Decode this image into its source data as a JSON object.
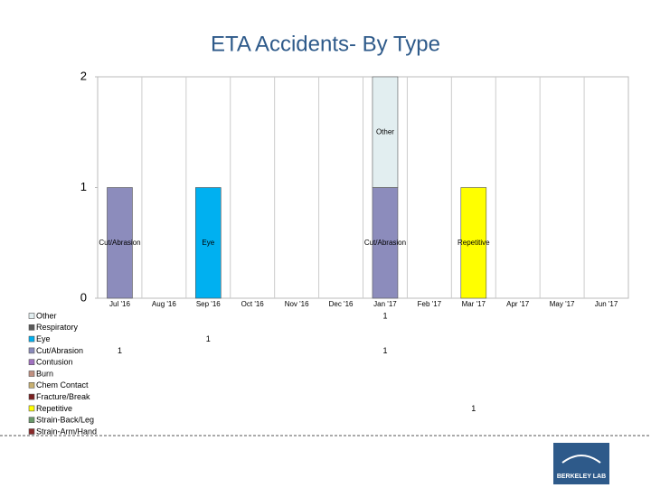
{
  "chart_data": {
    "type": "stacked-bar",
    "title": "ETA Accidents- By Type",
    "categories": [
      "Jul '16",
      "Aug '16",
      "Sep '16",
      "Oct '16",
      "Nov '16",
      "Dec '16",
      "Jan '17",
      "Feb '17",
      "Mar '17",
      "Apr '17",
      "May '17",
      "Jun '17"
    ],
    "series": [
      {
        "name": "Other",
        "color": "#e2eef0",
        "values": [
          null,
          null,
          null,
          null,
          null,
          null,
          1,
          null,
          null,
          null,
          null,
          null
        ]
      },
      {
        "name": "Respiratory",
        "color": "#5a5a5a",
        "values": [
          null,
          null,
          null,
          null,
          null,
          null,
          null,
          null,
          null,
          null,
          null,
          null
        ]
      },
      {
        "name": "Eye",
        "color": "#00b0f0",
        "values": [
          null,
          null,
          1,
          null,
          null,
          null,
          null,
          null,
          null,
          null,
          null,
          null
        ]
      },
      {
        "name": "Cut/Abrasion",
        "color": "#8c8cbc",
        "values": [
          1,
          null,
          null,
          null,
          null,
          null,
          1,
          null,
          null,
          null,
          null,
          null
        ]
      },
      {
        "name": "Contusion",
        "color": "#a070c0",
        "values": [
          null,
          null,
          null,
          null,
          null,
          null,
          null,
          null,
          null,
          null,
          null,
          null
        ]
      },
      {
        "name": "Burn",
        "color": "#c09080",
        "values": [
          null,
          null,
          null,
          null,
          null,
          null,
          null,
          null,
          null,
          null,
          null,
          null
        ]
      },
      {
        "name": "Chem Contact",
        "color": "#c8b070",
        "values": [
          null,
          null,
          null,
          null,
          null,
          null,
          null,
          null,
          null,
          null,
          null,
          null
        ]
      },
      {
        "name": "Fracture/Break",
        "color": "#7a2020",
        "values": [
          null,
          null,
          null,
          null,
          null,
          null,
          null,
          null,
          null,
          null,
          null,
          null
        ]
      },
      {
        "name": "Repetitive",
        "color": "#ffff00",
        "values": [
          null,
          null,
          null,
          null,
          null,
          null,
          null,
          null,
          1,
          null,
          null,
          null
        ]
      },
      {
        "name": "Strain-Back/Leg",
        "color": "#6a9a6a",
        "values": [
          null,
          null,
          null,
          null,
          null,
          null,
          null,
          null,
          null,
          null,
          null,
          null
        ]
      },
      {
        "name": "Strain-Arm/Hand",
        "color": "#8a2a2a",
        "values": [
          null,
          null,
          null,
          null,
          null,
          null,
          null,
          null,
          null,
          null,
          null,
          null
        ]
      }
    ],
    "ylim": [
      0,
      2
    ],
    "yticks": [
      0,
      1,
      2
    ],
    "grid": true
  },
  "logo": "BERKELEY LAB"
}
